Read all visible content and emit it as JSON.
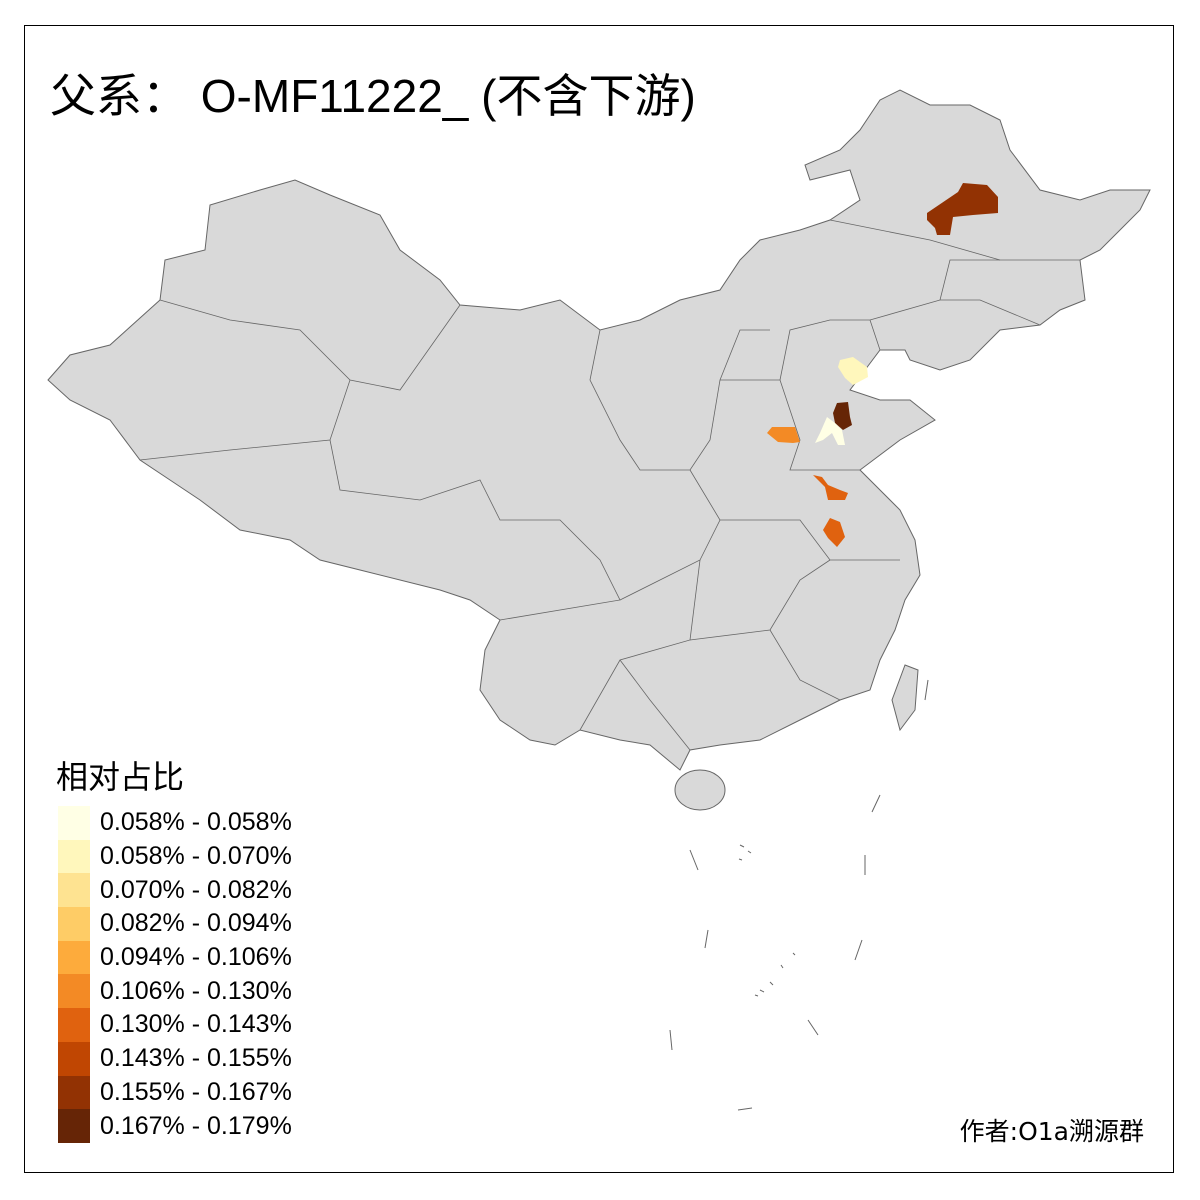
{
  "title": "父系： O-MF11222_ (不含下游)",
  "legend": {
    "title": "相对占比",
    "items": [
      {
        "label": "0.058% - 0.058%",
        "color": "#FFFFE5"
      },
      {
        "label": "0.058% - 0.070%",
        "color": "#FFF7BC"
      },
      {
        "label": "0.070% - 0.082%",
        "color": "#FEE391"
      },
      {
        "label": "0.082% - 0.094%",
        "color": "#FECC66"
      },
      {
        "label": "0.094% - 0.106%",
        "color": "#FDAB3C"
      },
      {
        "label": "0.106% - 0.130%",
        "color": "#F38A25"
      },
      {
        "label": "0.130% - 0.143%",
        "color": "#E0620F"
      },
      {
        "label": "0.143% - 0.155%",
        "color": "#C04602"
      },
      {
        "label": "0.155% - 0.167%",
        "color": "#923203"
      },
      {
        "label": "0.167% - 0.179%",
        "color": "#662506"
      }
    ]
  },
  "map": {
    "base_color": "#D9D9D9",
    "border_color": "#666666"
  },
  "author": "作者:O1a溯源群"
}
